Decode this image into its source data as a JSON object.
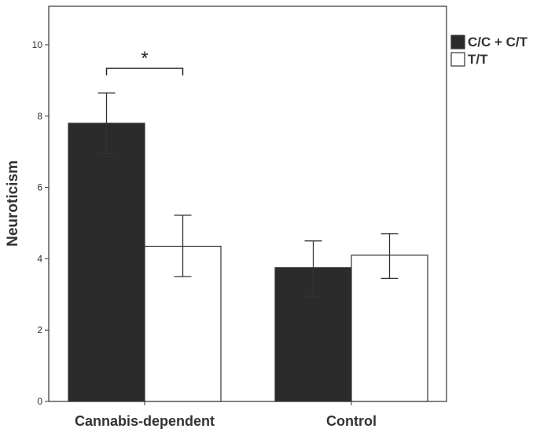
{
  "chart_data": {
    "type": "bar",
    "ylabel": "Neuroticism",
    "xlabel": "",
    "ylim": [
      0,
      11
    ],
    "yticks": [
      0,
      2,
      4,
      6,
      8,
      10
    ],
    "categories": [
      "Cannabis-dependent",
      "Control"
    ],
    "series": [
      {
        "name": "C/C + C/T",
        "color": "#2b2b2b",
        "values": [
          7.8,
          3.75
        ],
        "err_low": [
          6.95,
          2.95
        ],
        "err_high": [
          8.65,
          4.5
        ]
      },
      {
        "name": "T/T",
        "color": "#ffffff",
        "values": [
          4.35,
          4.1
        ],
        "err_low": [
          3.5,
          3.45
        ],
        "err_high": [
          5.22,
          4.7
        ]
      }
    ],
    "legend_position": "top-right, outside plot",
    "grid": false,
    "annotations": [
      {
        "text": "*",
        "between": "Cannabis-dependent bars"
      }
    ]
  }
}
